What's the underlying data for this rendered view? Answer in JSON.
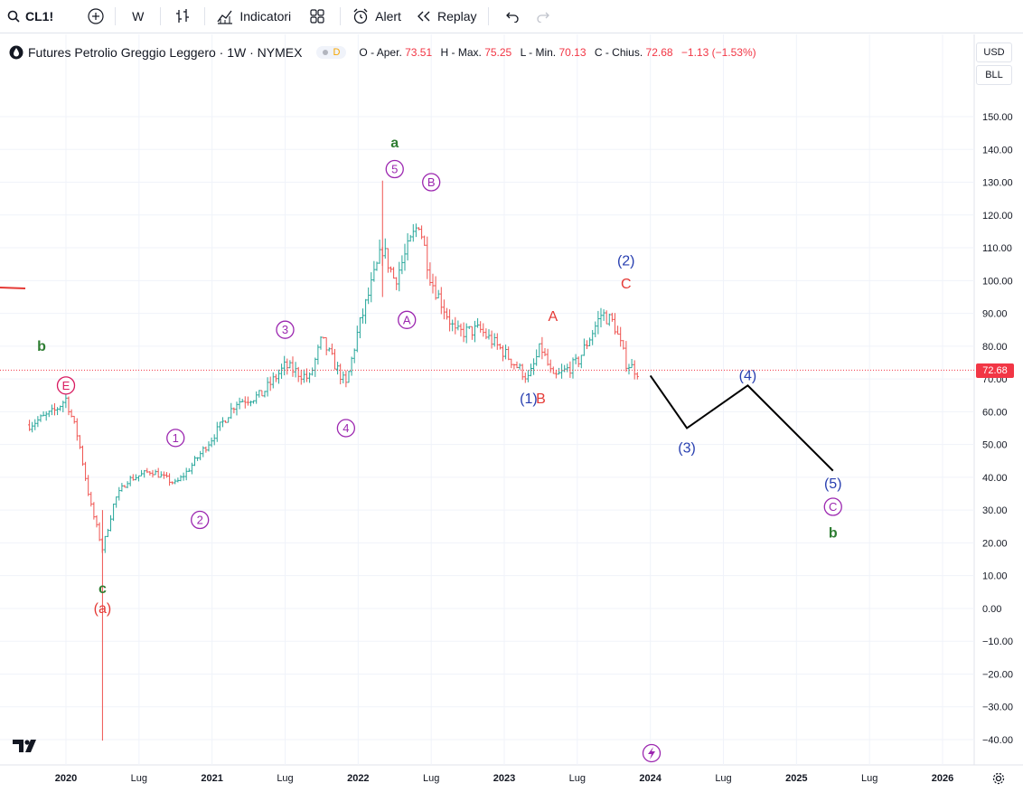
{
  "toolbar": {
    "symbol": "CL1!",
    "interval": "W",
    "indicators_label": "Indicatori",
    "alert_label": "Alert",
    "replay_label": "Replay"
  },
  "legend": {
    "title": "Futures Petrolio Greggio Leggero · 1W · NYMEX",
    "badge": "D",
    "open_label": "O - Aper.",
    "open": "73.51",
    "high_label": "H - Max.",
    "high": "75.25",
    "low_label": "L - Min.",
    "low": "70.13",
    "close_label": "C - Chius.",
    "close": "72.68",
    "change": "−1.13 (−1.53%)"
  },
  "scale": {
    "currency": "USD",
    "unit": "BLL",
    "last_price": "72.68"
  },
  "colors": {
    "up": "#26a69a",
    "down": "#ef5350",
    "purple": "#9c27b0",
    "green": "#2e7d32",
    "blue": "#283fb0",
    "red": "#e53935"
  },
  "chart_data": {
    "type": "ohlc",
    "y_ticks": [
      "150.00",
      "140.00",
      "130.00",
      "120.00",
      "110.00",
      "100.00",
      "90.00",
      "80.00",
      "70.00",
      "60.00",
      "50.00",
      "40.00",
      "30.00",
      "20.00",
      "10.00",
      "0.00",
      "−10.00",
      "−20.00",
      "−30.00",
      "−40.00"
    ],
    "x_ticks": [
      "2020",
      "Lug",
      "2021",
      "Lug",
      "2022",
      "Lug",
      "2023",
      "Lug",
      "2024",
      "Lug",
      "2025",
      "Lug",
      "2026"
    ],
    "price_path": [
      [
        "2019-10",
        56
      ],
      [
        "2019-12",
        60
      ],
      [
        "2020-01",
        64
      ],
      [
        "2020-02",
        52
      ],
      [
        "2020-03",
        32
      ],
      [
        "2020-04",
        18
      ],
      [
        "2020-05",
        33
      ],
      [
        "2020-06",
        39
      ],
      [
        "2020-08",
        42
      ],
      [
        "2020-10",
        38
      ],
      [
        "2020-11",
        42
      ],
      [
        "2021-01",
        52
      ],
      [
        "2021-03",
        63
      ],
      [
        "2021-05",
        65
      ],
      [
        "2021-07",
        74
      ],
      [
        "2021-09",
        70
      ],
      [
        "2021-10",
        82
      ],
      [
        "2021-12",
        68
      ],
      [
        "2022-01",
        85
      ],
      [
        "2022-03",
        110
      ],
      [
        "2022-04",
        100
      ],
      [
        "2022-06",
        118
      ],
      [
        "2022-07",
        100
      ],
      [
        "2022-09",
        84
      ],
      [
        "2022-11",
        85
      ],
      [
        "2023-01",
        78
      ],
      [
        "2023-03",
        70
      ],
      [
        "2023-04",
        80
      ],
      [
        "2023-05",
        70
      ],
      [
        "2023-07",
        75
      ],
      [
        "2023-09",
        90
      ],
      [
        "2023-10",
        87
      ],
      [
        "2023-11",
        75
      ],
      [
        "2023-12",
        72
      ]
    ],
    "price_extremes": {
      "low_2020": -40.32,
      "high_2022": 130.5
    },
    "projection": [
      {
        "x": "2024-01",
        "y": 71,
        "label": ""
      },
      {
        "x": "2024-04",
        "y": 55,
        "label": "(3)"
      },
      {
        "x": "2024-09",
        "y": 68,
        "label": "(4)"
      },
      {
        "x": "2025-04",
        "y": 42,
        "label": "(5)"
      }
    ],
    "wave_labels": [
      {
        "text": "E",
        "style": "circle-pink",
        "x": "2020-01",
        "y": 68
      },
      {
        "text": "b",
        "style": "green",
        "x": "2019-11",
        "y": 80
      },
      {
        "text": "c",
        "style": "green",
        "x": "2020-04",
        "y": 6
      },
      {
        "text": "(a)",
        "style": "red",
        "x": "2020-04",
        "y": 0
      },
      {
        "text": "1",
        "style": "circle-purple",
        "x": "2020-10",
        "y": 52
      },
      {
        "text": "2",
        "style": "circle-purple",
        "x": "2020-12",
        "y": 27
      },
      {
        "text": "3",
        "style": "circle-purple",
        "x": "2021-07",
        "y": 85
      },
      {
        "text": "4",
        "style": "circle-purple",
        "x": "2021-12",
        "y": 55
      },
      {
        "text": "5",
        "style": "circle-purple",
        "x": "2022-04",
        "y": 134
      },
      {
        "text": "a",
        "style": "green",
        "x": "2022-04",
        "y": 142
      },
      {
        "text": "A",
        "style": "circle-purple",
        "x": "2022-05",
        "y": 88
      },
      {
        "text": "B",
        "style": "circle-purple",
        "x": "2022-07",
        "y": 130
      },
      {
        "text": "A",
        "style": "red",
        "x": "2023-05",
        "y": 89
      },
      {
        "text": "(1)",
        "style": "blue",
        "x": "2023-03",
        "y": 64
      },
      {
        "text": "B",
        "style": "red",
        "x": "2023-04",
        "y": 64
      },
      {
        "text": "C",
        "style": "red",
        "x": "2023-11",
        "y": 99
      },
      {
        "text": "(2)",
        "style": "blue",
        "x": "2023-11",
        "y": 106
      },
      {
        "text": "(3)",
        "style": "blue",
        "x": "2024-04",
        "y": 49
      },
      {
        "text": "(4)",
        "style": "blue",
        "x": "2024-09",
        "y": 71
      },
      {
        "text": "(5)",
        "style": "blue",
        "x": "2025-04",
        "y": 38
      },
      {
        "text": "C",
        "style": "circle-purple",
        "x": "2025-04",
        "y": 31
      },
      {
        "text": "b",
        "style": "green",
        "x": "2025-04",
        "y": 23
      }
    ]
  }
}
